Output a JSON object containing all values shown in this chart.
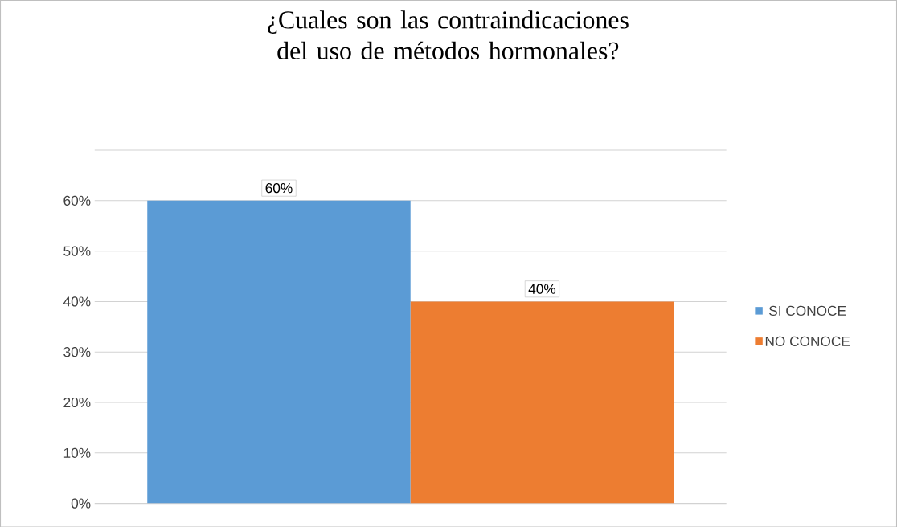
{
  "chart_data": {
    "type": "bar",
    "title": "¿Cuales son las contraindicaciones del uso de métodos hormonales?",
    "categories": [
      null
    ],
    "series": [
      {
        "name": "SI CONOCE",
        "color": "#5b9bd5",
        "values": [
          60
        ],
        "value_labels": [
          "60%"
        ]
      },
      {
        "name": "NO CONOCE",
        "color": "#ed7d31",
        "values": [
          40
        ],
        "value_labels": [
          "40%"
        ]
      }
    ],
    "ylim": [
      0,
      70
    ],
    "yticks": [
      {
        "value": 0,
        "label": "0%"
      },
      {
        "value": 10,
        "label": "10%"
      },
      {
        "value": 20,
        "label": "20%"
      },
      {
        "value": 30,
        "label": "30%"
      },
      {
        "value": 40,
        "label": "40%"
      },
      {
        "value": 50,
        "label": "50%"
      },
      {
        "value": 60,
        "label": "60%"
      },
      {
        "value": 70,
        "label": null
      }
    ],
    "grid": "y",
    "legend": "right"
  }
}
